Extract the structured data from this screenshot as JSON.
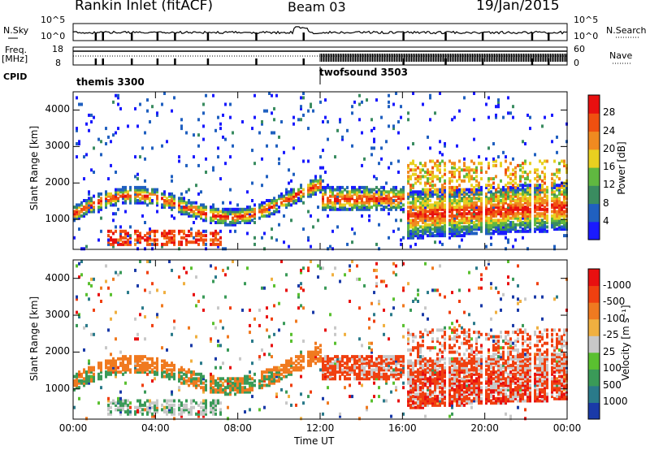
{
  "header": {
    "station": "Rankin Inlet (fitACF)",
    "beam": "Beam 03",
    "date": "19/Jan/2015"
  },
  "strip_labels": {
    "nsky": "N.Sky",
    "nsky_hi": "10^5",
    "nsky_lo": "10^0",
    "nsearch": "N.Search",
    "nsearch_hi": "10^5",
    "nsearch_lo": "10^0",
    "freq": "Freq.",
    "freq_unit": "[MHz]",
    "freq_hi": "18",
    "freq_lo": "8",
    "nave": "Nave",
    "nave_hi": "60",
    "nave_lo": "0",
    "cpid": "CPID",
    "mode1": "themis 3300",
    "mode2": "twofsound 3503"
  },
  "chart_data": [
    {
      "type": "heatmap",
      "title": "",
      "xlabel": "",
      "ylabel": "Slant Range [km]",
      "x_ticks": [
        "00:00",
        "04:00",
        "08:00",
        "12:00",
        "16:00",
        "20:00",
        "00:00"
      ],
      "y_ticks": [
        "1000",
        "2000",
        "3000",
        "4000"
      ],
      "ylim": [
        180,
        4500
      ],
      "xlim_hours": [
        0,
        24
      ],
      "colorbar": {
        "label": "Power [dB]",
        "ticks": [
          "4",
          "8",
          "12",
          "16",
          "20",
          "24",
          "28"
        ],
        "colors": [
          "#1a1aff",
          "#2060c0",
          "#3a8c60",
          "#60b840",
          "#e8d020",
          "#f08a20",
          "#f05010",
          "#e81010"
        ]
      }
    },
    {
      "type": "heatmap",
      "title": "",
      "xlabel": "Time UT",
      "ylabel": "Slant Range [km]",
      "x_ticks": [
        "00:00",
        "04:00",
        "08:00",
        "12:00",
        "16:00",
        "20:00",
        "00:00"
      ],
      "y_ticks": [
        "1000",
        "2000",
        "3000",
        "4000"
      ],
      "ylim": [
        180,
        4500
      ],
      "xlim_hours": [
        0,
        24
      ],
      "colorbar": {
        "label": "Velocity [m s⁻¹]",
        "ticks": [
          "1000",
          "500",
          "100",
          "25",
          "-25",
          "-100",
          "-500",
          "-1000"
        ],
        "colors": [
          "#1a3aa8",
          "#2a7a8a",
          "#3a9a58",
          "#5ac030",
          "#c8c8c8",
          "#f0b040",
          "#f07a20",
          "#f04010",
          "#e81010"
        ]
      }
    }
  ]
}
